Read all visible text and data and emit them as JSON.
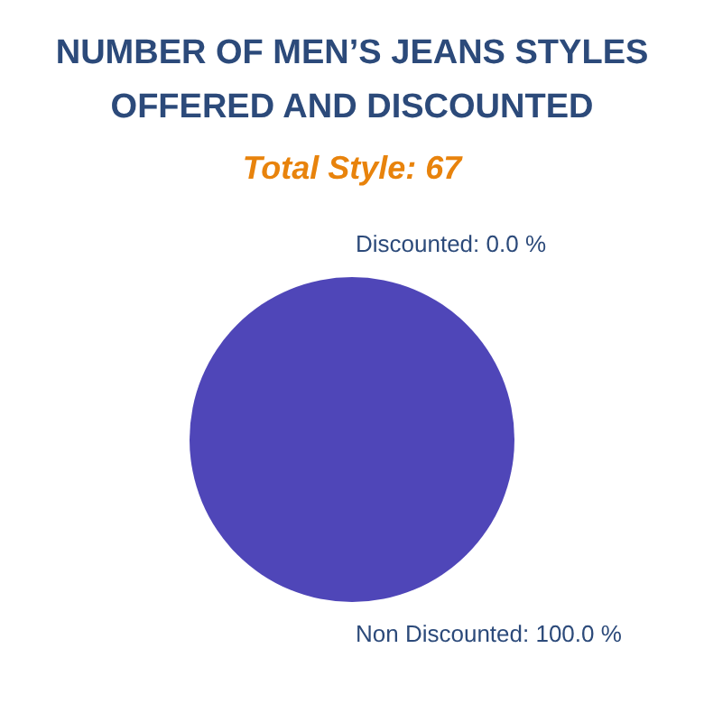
{
  "chart_data": {
    "type": "pie",
    "title": [
      "NUMBER OF MEN’S JEANS STYLES",
      "OFFERED AND DISCOUNTED"
    ],
    "subtitle": "Total Style: 67",
    "categories": [
      "Discounted",
      "Non Discounted"
    ],
    "values": [
      0,
      100
    ],
    "colors": [
      "#5bc0de",
      "#4f46b8"
    ],
    "value_labels": [
      ": 0.0 %",
      ": 100.0 %"
    ],
    "legend": false
  }
}
